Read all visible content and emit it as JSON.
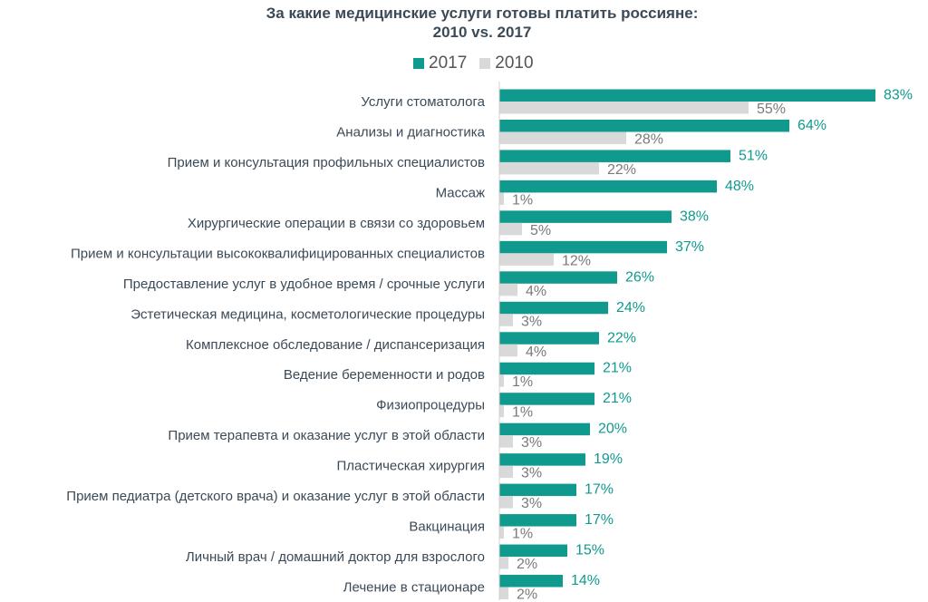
{
  "chart_data": {
    "type": "bar",
    "orientation": "horizontal",
    "title": "За какие медицинские услуги готовы платить россияне:",
    "subtitle": "2010 vs. 2017",
    "legend_position": "top",
    "xlim": [
      0,
      100
    ],
    "grid": false,
    "categories": [
      "Услуги стоматолога",
      "Анализы и диагностика",
      "Прием и консультация профильных специалистов",
      "Массаж",
      "Хирургические операции в связи со здоровьем",
      "Прием и консультации высококвалифицированных специалистов",
      "Предоставление услуг в удобное время / срочные услуги",
      "Эстетическая медицина, косметологические процедуры",
      "Комплексное обследование / диспансеризация",
      "Ведение беременности и родов",
      "Физиопроцедуры",
      "Прием терапевта и оказание услуг в этой области",
      "Пластическая хирургия",
      "Прием педиатра (детского врача) и оказание услуг в этой области",
      "Вакцинация",
      "Личный врач / домашний доктор для взрослого",
      "Лечение в стационаре"
    ],
    "series": [
      {
        "name": "2017",
        "color": "#0f9a8d",
        "values": [
          83,
          64,
          51,
          48,
          38,
          37,
          26,
          24,
          22,
          21,
          21,
          20,
          19,
          17,
          17,
          15,
          14
        ]
      },
      {
        "name": "2010",
        "color": "#d9d9d9",
        "values": [
          55,
          28,
          22,
          1,
          5,
          12,
          4,
          3,
          4,
          1,
          1,
          3,
          3,
          3,
          1,
          2,
          2
        ]
      }
    ],
    "value_suffix": "%"
  }
}
